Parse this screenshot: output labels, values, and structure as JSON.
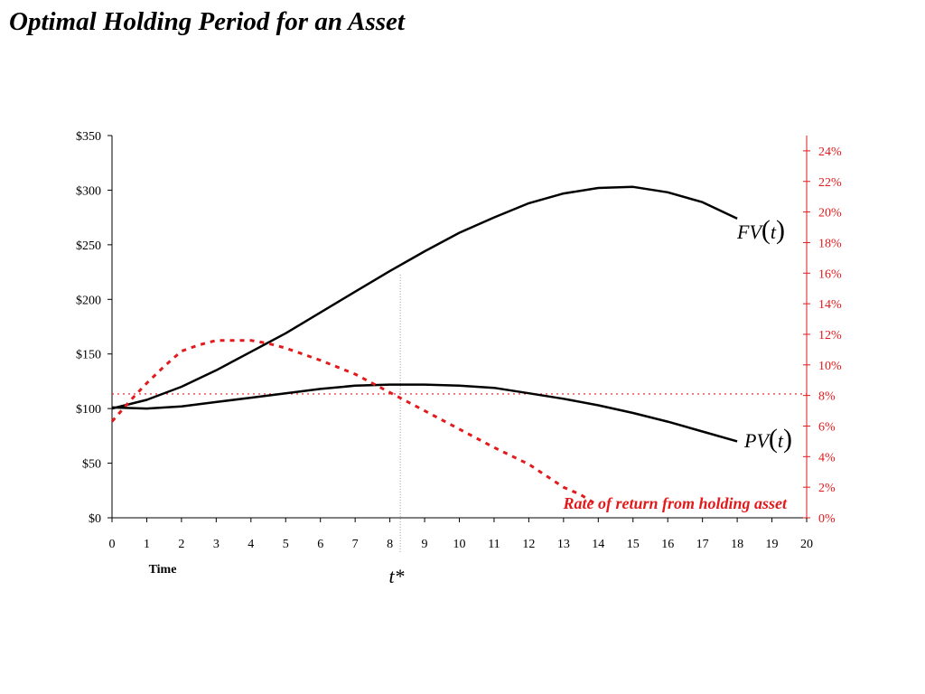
{
  "title": "Optimal Holding Period for an Asset",
  "chart_data": {
    "type": "line",
    "title": "Optimal Holding Period for an Asset",
    "xlabel": "Time",
    "xlim": [
      0,
      20
    ],
    "x_ticks": [
      "0",
      "1",
      "2",
      "3",
      "4",
      "5",
      "6",
      "7",
      "8",
      "9",
      "10",
      "11",
      "12",
      "13",
      "14",
      "15",
      "16",
      "17",
      "18",
      "19",
      "20"
    ],
    "ylim_left": [
      0,
      350
    ],
    "y_ticks_left": [
      "$0",
      "$50",
      "$100",
      "$150",
      "$200",
      "$250",
      "$300",
      "$350"
    ],
    "ylim_right": [
      0,
      25
    ],
    "y_ticks_right": [
      "0%",
      "2%",
      "4%",
      "6%",
      "8%",
      "10%",
      "12%",
      "14%",
      "16%",
      "18%",
      "20%",
      "22%",
      "24%"
    ],
    "grid": false,
    "series": [
      {
        "name": "FV(t)",
        "axis": "left",
        "style": "solid",
        "x": [
          0,
          1,
          2,
          3,
          4,
          5,
          6,
          7,
          8,
          9,
          10,
          11,
          12,
          13,
          14,
          15,
          16,
          17,
          18
        ],
        "y": [
          100,
          108,
          120,
          135,
          152,
          169,
          188,
          207,
          226,
          244,
          261,
          275,
          288,
          297,
          302,
          303,
          298,
          289,
          274
        ]
      },
      {
        "name": "PV(t)",
        "axis": "left",
        "style": "solid",
        "x": [
          0,
          1,
          2,
          3,
          4,
          5,
          6,
          7,
          8,
          9,
          10,
          11,
          12,
          13,
          14,
          15,
          16,
          17,
          18
        ],
        "y": [
          101,
          100,
          102,
          106,
          110,
          114,
          118,
          121,
          122,
          122,
          121,
          119,
          114,
          109,
          103,
          96,
          88,
          79,
          70
        ]
      },
      {
        "name": "Rate of return from holding asset",
        "axis": "right",
        "style": "dashed",
        "x": [
          0,
          0.5,
          1,
          1.5,
          2,
          2.5,
          3,
          3.5,
          4,
          4.5,
          5,
          6,
          7,
          8,
          9,
          10,
          11,
          12,
          13,
          13.5,
          14
        ],
        "y": [
          6.3,
          7.6,
          8.8,
          9.9,
          10.9,
          11.3,
          11.6,
          11.6,
          11.6,
          11.4,
          11.1,
          10.3,
          9.4,
          8.2,
          7.0,
          5.8,
          4.6,
          3.5,
          2.0,
          1.5,
          0.8
        ]
      }
    ],
    "reference_lines": [
      {
        "type": "horizontal",
        "axis": "right",
        "value": 8.1,
        "style": "dotted",
        "color": "#e31a1c"
      },
      {
        "type": "vertical",
        "x": 8.3,
        "style": "dotted",
        "color": "#999999",
        "label": "t*"
      }
    ],
    "annotations": {
      "fv_label_main": "FV",
      "fv_label_var": "t",
      "pv_label_main": "PV",
      "pv_label_var": "t",
      "rate_label": "Rate of return from holding asset",
      "tstar_label": "t*"
    },
    "colors": {
      "value_curves": "#000000",
      "rate": "#e31a1c",
      "tstar_line": "#999999"
    }
  }
}
